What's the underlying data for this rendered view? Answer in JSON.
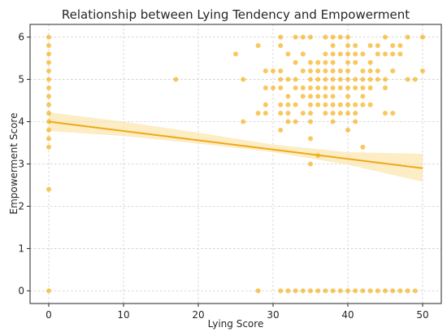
{
  "chart_data": {
    "type": "scatter",
    "title": "Relationship between Lying Tendency and Empowerment",
    "xlabel": "Lying Score",
    "ylabel": "Empowerment Score",
    "xlim": [
      -2.5,
      52.5
    ],
    "ylim": [
      -0.3,
      6.3
    ],
    "xticks": [
      0,
      10,
      20,
      30,
      40,
      50
    ],
    "yticks": [
      0,
      1,
      2,
      3,
      4,
      5,
      6
    ],
    "grid": true,
    "point_color": "#f5b01a",
    "line_color": "#f0a818",
    "band_color": "#fbe3a6",
    "points": [
      [
        0,
        6
      ],
      [
        0,
        5.8
      ],
      [
        0,
        5.6
      ],
      [
        0,
        5.4
      ],
      [
        0,
        5.2
      ],
      [
        0,
        5
      ],
      [
        0,
        4.8
      ],
      [
        0,
        4.6
      ],
      [
        0,
        4.4
      ],
      [
        0,
        4.2
      ],
      [
        0,
        4
      ],
      [
        0,
        3.8
      ],
      [
        0,
        3.6
      ],
      [
        0,
        3.4
      ],
      [
        0,
        2.4
      ],
      [
        0,
        0
      ],
      [
        17,
        5
      ],
      [
        25,
        5.6
      ],
      [
        26,
        5
      ],
      [
        26,
        4
      ],
      [
        28,
        5.8
      ],
      [
        28,
        4.2
      ],
      [
        28,
        0
      ],
      [
        29,
        5.2
      ],
      [
        29,
        4.8
      ],
      [
        29,
        4.4
      ],
      [
        29,
        4.2
      ],
      [
        30,
        5.2
      ],
      [
        30,
        4.8
      ],
      [
        31,
        6
      ],
      [
        31,
        5.8
      ],
      [
        31,
        5.2
      ],
      [
        31,
        5
      ],
      [
        31,
        4.8
      ],
      [
        31,
        4.4
      ],
      [
        31,
        4.2
      ],
      [
        31,
        3.8
      ],
      [
        31,
        0
      ],
      [
        32,
        5.6
      ],
      [
        32,
        5
      ],
      [
        32,
        4.6
      ],
      [
        32,
        4.4
      ],
      [
        32,
        4.2
      ],
      [
        32,
        4
      ],
      [
        32,
        0
      ],
      [
        33,
        6
      ],
      [
        33,
        5.4
      ],
      [
        33,
        5
      ],
      [
        33,
        4.8
      ],
      [
        33,
        4.4
      ],
      [
        33,
        4
      ],
      [
        33,
        0
      ],
      [
        34,
        6
      ],
      [
        34,
        5.6
      ],
      [
        34,
        5.2
      ],
      [
        34,
        4.8
      ],
      [
        34,
        4.6
      ],
      [
        34,
        4.2
      ],
      [
        34,
        0
      ],
      [
        35,
        6
      ],
      [
        35,
        5.4
      ],
      [
        35,
        5.2
      ],
      [
        35,
        5
      ],
      [
        35,
        4.8
      ],
      [
        35,
        4.6
      ],
      [
        35,
        4.4
      ],
      [
        35,
        4.2
      ],
      [
        35,
        4
      ],
      [
        35,
        3.6
      ],
      [
        35,
        3
      ],
      [
        35,
        0
      ],
      [
        36,
        5.4
      ],
      [
        36,
        5.2
      ],
      [
        36,
        5
      ],
      [
        36,
        4.8
      ],
      [
        36,
        4.6
      ],
      [
        36,
        4.4
      ],
      [
        36,
        3.2
      ],
      [
        36,
        0
      ],
      [
        37,
        6
      ],
      [
        37,
        5.6
      ],
      [
        37,
        5.4
      ],
      [
        37,
        5.2
      ],
      [
        37,
        5
      ],
      [
        37,
        4.8
      ],
      [
        37,
        4.6
      ],
      [
        37,
        4.4
      ],
      [
        37,
        4.2
      ],
      [
        37,
        0
      ],
      [
        38,
        6
      ],
      [
        38,
        5.8
      ],
      [
        38,
        5.6
      ],
      [
        38,
        5.4
      ],
      [
        38,
        5.2
      ],
      [
        38,
        5
      ],
      [
        38,
        4.8
      ],
      [
        38,
        4.6
      ],
      [
        38,
        4.4
      ],
      [
        38,
        4.2
      ],
      [
        38,
        4
      ],
      [
        38,
        0
      ],
      [
        39,
        6
      ],
      [
        39,
        5.6
      ],
      [
        39,
        5.2
      ],
      [
        39,
        5
      ],
      [
        39,
        4.8
      ],
      [
        39,
        4.4
      ],
      [
        39,
        4.2
      ],
      [
        39,
        0
      ],
      [
        40,
        6
      ],
      [
        40,
        5.8
      ],
      [
        40,
        5.6
      ],
      [
        40,
        5.4
      ],
      [
        40,
        5.2
      ],
      [
        40,
        5
      ],
      [
        40,
        4.8
      ],
      [
        40,
        4.6
      ],
      [
        40,
        4.4
      ],
      [
        40,
        4.2
      ],
      [
        40,
        3.8
      ],
      [
        40,
        0
      ],
      [
        41,
        5.8
      ],
      [
        41,
        5.6
      ],
      [
        41,
        5.4
      ],
      [
        41,
        5
      ],
      [
        41,
        4.8
      ],
      [
        41,
        4.4
      ],
      [
        41,
        4.2
      ],
      [
        41,
        4
      ],
      [
        41,
        0
      ],
      [
        42,
        5.6
      ],
      [
        42,
        5.2
      ],
      [
        42,
        5
      ],
      [
        42,
        4.8
      ],
      [
        42,
        4.6
      ],
      [
        42,
        4.4
      ],
      [
        42,
        3.4
      ],
      [
        42,
        0
      ],
      [
        43,
        5.8
      ],
      [
        43,
        5.4
      ],
      [
        43,
        5.2
      ],
      [
        43,
        5
      ],
      [
        43,
        4.8
      ],
      [
        43,
        4.4
      ],
      [
        43,
        0
      ],
      [
        44,
        5.8
      ],
      [
        44,
        5.6
      ],
      [
        44,
        5.2
      ],
      [
        44,
        5
      ],
      [
        44,
        0
      ],
      [
        45,
        6
      ],
      [
        45,
        5.6
      ],
      [
        45,
        5
      ],
      [
        45,
        4.8
      ],
      [
        45,
        4.2
      ],
      [
        45,
        0
      ],
      [
        46,
        5.8
      ],
      [
        46,
        5.6
      ],
      [
        46,
        5.2
      ],
      [
        46,
        4.2
      ],
      [
        46,
        0
      ],
      [
        47,
        5.8
      ],
      [
        47,
        5.6
      ],
      [
        47,
        0
      ],
      [
        48,
        6
      ],
      [
        48,
        5
      ],
      [
        48,
        0
      ],
      [
        49,
        5
      ],
      [
        49,
        0
      ],
      [
        50,
        6
      ],
      [
        50,
        5.2
      ]
    ],
    "regression": {
      "x": [
        0,
        50
      ],
      "y": [
        4.0,
        2.9
      ]
    },
    "confidence_band": {
      "x": [
        0,
        10,
        20,
        30,
        40,
        50
      ],
      "lower": [
        3.78,
        3.66,
        3.48,
        3.28,
        2.98,
        2.58
      ],
      "upper": [
        4.22,
        4.0,
        3.74,
        3.46,
        3.28,
        3.24
      ]
    }
  }
}
